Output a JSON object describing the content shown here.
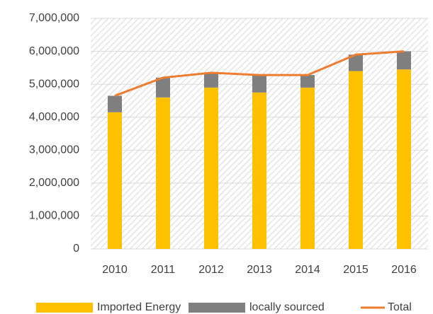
{
  "chart_data": {
    "type": "bar",
    "categories": [
      "2010",
      "2011",
      "2012",
      "2013",
      "2014",
      "2015",
      "2016"
    ],
    "series": [
      {
        "name": "Imported Energy",
        "color": "#ffc000",
        "values": [
          4150000,
          4600000,
          4900000,
          4750000,
          4900000,
          5400000,
          5450000
        ]
      },
      {
        "name": "locally sourced",
        "color": "#7f7f7f",
        "values": [
          500000,
          600000,
          450000,
          530000,
          380000,
          500000,
          550000
        ]
      },
      {
        "name": "Total",
        "color": "#ed7d31",
        "type": "line",
        "values": [
          4650000,
          5200000,
          5350000,
          5280000,
          5280000,
          5900000,
          6000000
        ]
      }
    ],
    "stacked": true,
    "ylim": [
      0,
      7000000
    ],
    "yticks": [
      0,
      {
        "value": 1000000,
        "label": "1,000,000"
      },
      {
        "value": 2000000,
        "label": "2,000,000"
      },
      {
        "value": 3000000,
        "label": "3,000,000"
      },
      {
        "value": 4000000,
        "label": "4,000,000"
      },
      {
        "value": 5000000,
        "label": "5,000,000"
      },
      {
        "value": 6000000,
        "label": "6,000,000"
      },
      {
        "value": 7000000,
        "label": "7,000,000"
      }
    ],
    "grid": true,
    "legend": "bottom"
  }
}
